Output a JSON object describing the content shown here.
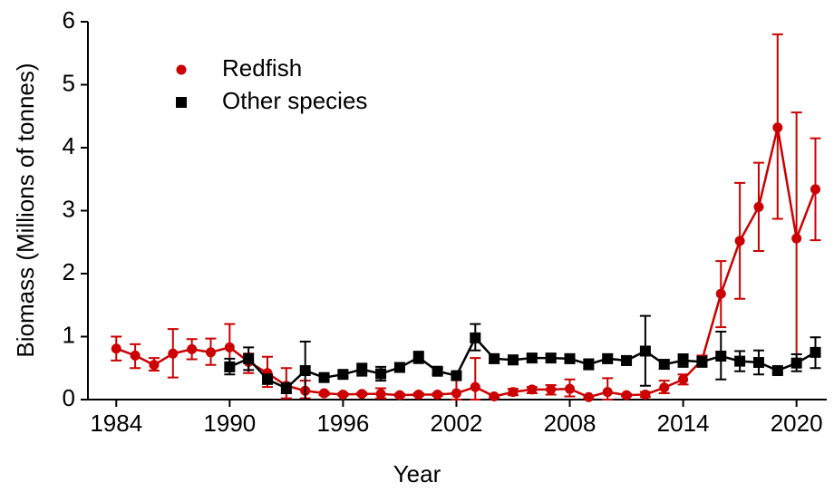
{
  "chart_data": {
    "type": "line",
    "x_label": "Year",
    "y_label": "Biomass (Millions of tonnes)",
    "x": [
      1984,
      1985,
      1986,
      1987,
      1988,
      1989,
      1990,
      1991,
      1992,
      1993,
      1994,
      1995,
      1996,
      1997,
      1998,
      1999,
      2000,
      2001,
      2002,
      2003,
      2004,
      2005,
      2006,
      2007,
      2008,
      2009,
      2010,
      2011,
      2012,
      2013,
      2014,
      2015,
      2016,
      2017,
      2018,
      2019,
      2020,
      2021
    ],
    "series": [
      {
        "name": "Redfish",
        "color": "#cc0000",
        "marker": "circle",
        "values": [
          0.81,
          0.7,
          0.55,
          0.73,
          0.8,
          0.75,
          0.83,
          0.6,
          0.42,
          0.22,
          0.14,
          0.1,
          0.08,
          0.09,
          0.09,
          0.07,
          0.08,
          0.08,
          0.1,
          0.2,
          0.05,
          0.12,
          0.16,
          0.16,
          0.17,
          0.04,
          0.12,
          0.07,
          0.08,
          0.19,
          0.32,
          0.63,
          1.68,
          2.52,
          3.06,
          4.32,
          2.56,
          3.34
        ],
        "lower": [
          0.62,
          0.5,
          0.46,
          0.35,
          0.64,
          0.55,
          0.45,
          0.42,
          0.2,
          0.02,
          0.02,
          0.07,
          0.06,
          0.07,
          0.02,
          0.05,
          0.06,
          0.06,
          0.0,
          0.0,
          0.03,
          0.07,
          0.1,
          0.08,
          0.05,
          0.02,
          0.0,
          0.05,
          0.04,
          0.1,
          0.24,
          0.55,
          1.15,
          1.6,
          2.36,
          2.87,
          0.6,
          2.53
        ],
        "upper": [
          1.0,
          0.88,
          0.66,
          1.12,
          0.96,
          0.97,
          1.2,
          0.73,
          0.68,
          0.5,
          0.3,
          0.12,
          0.1,
          0.11,
          0.18,
          0.09,
          0.1,
          0.1,
          0.32,
          0.66,
          0.07,
          0.17,
          0.2,
          0.23,
          0.32,
          0.06,
          0.34,
          0.09,
          0.12,
          0.3,
          0.4,
          0.7,
          2.2,
          3.44,
          3.76,
          5.8,
          4.56,
          4.15
        ]
      },
      {
        "name": "Other species",
        "color": "#000000",
        "marker": "square",
        "values": [
          null,
          null,
          null,
          null,
          null,
          null,
          0.52,
          0.65,
          0.32,
          0.18,
          0.46,
          0.35,
          0.4,
          0.48,
          0.41,
          0.51,
          0.67,
          0.45,
          0.38,
          0.98,
          0.65,
          0.63,
          0.66,
          0.66,
          0.65,
          0.56,
          0.65,
          0.62,
          0.77,
          0.56,
          0.62,
          0.6,
          0.69,
          0.61,
          0.59,
          0.46,
          0.58,
          0.75
        ],
        "lower": [
          null,
          null,
          null,
          null,
          null,
          null,
          0.4,
          0.47,
          0.25,
          0.1,
          0.0,
          0.3,
          0.35,
          0.38,
          0.3,
          0.44,
          0.58,
          0.4,
          0.32,
          0.78,
          0.58,
          0.56,
          0.6,
          0.6,
          0.58,
          0.48,
          0.58,
          0.55,
          0.22,
          0.49,
          0.52,
          0.52,
          0.32,
          0.45,
          0.4,
          0.42,
          0.45,
          0.5
        ],
        "upper": [
          null,
          null,
          null,
          null,
          null,
          null,
          0.65,
          0.83,
          0.4,
          0.26,
          0.92,
          0.4,
          0.45,
          0.57,
          0.52,
          0.58,
          0.76,
          0.5,
          0.43,
          1.2,
          0.72,
          0.7,
          0.72,
          0.72,
          0.72,
          0.64,
          0.72,
          0.69,
          1.33,
          0.63,
          0.72,
          0.68,
          1.08,
          0.77,
          0.78,
          0.5,
          0.72,
          0.99
        ]
      }
    ],
    "xlim": [
      1982.5,
      2021.6
    ],
    "xticks": [
      1984,
      1990,
      1996,
      2002,
      2008,
      2014,
      2020
    ],
    "ylim": [
      0,
      6
    ],
    "yticks": [
      0,
      1,
      2,
      3,
      4,
      5,
      6
    ],
    "legend": "upper left"
  }
}
